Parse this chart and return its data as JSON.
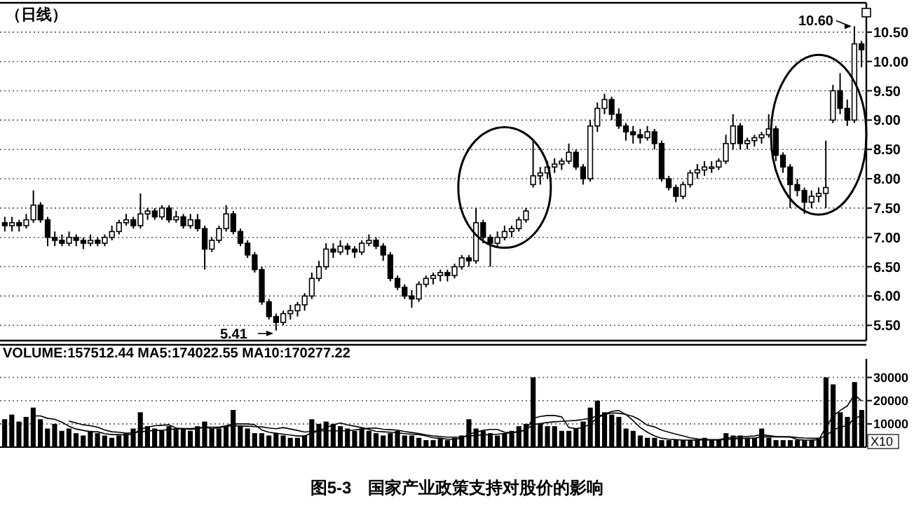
{
  "chart_data": [
    {
      "type": "candlestick",
      "title": "（日线）",
      "categories": [
        null,
        null,
        null,
        null,
        null,
        null,
        null,
        null,
        null,
        null,
        null,
        null,
        null,
        null,
        null,
        null,
        null,
        null,
        null,
        null,
        null,
        null,
        null,
        null,
        null,
        null,
        null,
        null,
        null,
        null,
        null,
        null,
        null,
        null,
        null,
        null,
        null,
        null,
        null,
        null,
        null,
        null,
        null,
        null,
        null,
        null,
        null,
        null,
        null,
        null,
        null,
        null,
        null,
        null,
        null,
        null,
        null,
        null,
        null,
        null,
        null,
        null,
        null,
        null,
        null,
        null,
        null,
        null,
        null,
        null,
        null,
        null,
        null,
        null,
        null,
        null,
        null,
        null,
        null,
        null,
        null,
        null,
        null,
        null,
        null,
        null,
        null,
        null,
        null,
        null,
        null,
        null,
        null,
        null,
        null,
        null,
        null,
        null,
        null,
        null,
        null,
        null,
        null,
        null,
        null,
        null,
        null,
        null,
        null,
        null,
        null,
        null,
        null,
        null,
        null,
        null,
        null,
        null,
        null,
        null,
        null
      ],
      "ohlc": [
        [
          7.25,
          7.35,
          7.1,
          7.2
        ],
        [
          7.2,
          7.35,
          7.1,
          7.25
        ],
        [
          7.25,
          7.3,
          7.1,
          7.2
        ],
        [
          7.2,
          7.4,
          7.15,
          7.3
        ],
        [
          7.3,
          7.8,
          7.25,
          7.55
        ],
        [
          7.55,
          7.6,
          7.25,
          7.3
        ],
        [
          7.3,
          7.35,
          6.85,
          7.0
        ],
        [
          7.0,
          7.1,
          6.85,
          6.95
        ],
        [
          6.95,
          7.05,
          6.85,
          6.9
        ],
        [
          6.9,
          7.1,
          6.85,
          7.0
        ],
        [
          7.0,
          7.05,
          6.85,
          6.95
        ],
        [
          6.95,
          7.0,
          6.8,
          6.9
        ],
        [
          6.9,
          7.05,
          6.85,
          6.95
        ],
        [
          6.95,
          7.0,
          6.85,
          6.9
        ],
        [
          6.9,
          7.05,
          6.85,
          7.0
        ],
        [
          7.0,
          7.2,
          6.95,
          7.1
        ],
        [
          7.1,
          7.3,
          7.05,
          7.25
        ],
        [
          7.25,
          7.4,
          7.2,
          7.3
        ],
        [
          7.3,
          7.35,
          7.15,
          7.2
        ],
        [
          7.2,
          7.75,
          7.15,
          7.4
        ],
        [
          7.4,
          7.5,
          7.3,
          7.45
        ],
        [
          7.45,
          7.5,
          7.3,
          7.35
        ],
        [
          7.35,
          7.55,
          7.3,
          7.5
        ],
        [
          7.5,
          7.55,
          7.25,
          7.3
        ],
        [
          7.3,
          7.45,
          7.25,
          7.35
        ],
        [
          7.35,
          7.4,
          7.15,
          7.2
        ],
        [
          7.2,
          7.4,
          7.15,
          7.3
        ],
        [
          7.3,
          7.4,
          7.1,
          7.15
        ],
        [
          7.15,
          7.2,
          6.45,
          6.8
        ],
        [
          6.8,
          7.0,
          6.75,
          6.95
        ],
        [
          6.95,
          7.2,
          6.9,
          7.15
        ],
        [
          7.15,
          7.55,
          7.1,
          7.4
        ],
        [
          7.4,
          7.45,
          7.05,
          7.1
        ],
        [
          7.1,
          7.15,
          6.85,
          6.9
        ],
        [
          6.9,
          6.95,
          6.65,
          6.7
        ],
        [
          6.7,
          6.75,
          6.4,
          6.45
        ],
        [
          6.45,
          6.5,
          5.85,
          5.9
        ],
        [
          5.9,
          5.95,
          5.6,
          5.65
        ],
        [
          5.65,
          5.7,
          5.41,
          5.55
        ],
        [
          5.55,
          5.75,
          5.5,
          5.7
        ],
        [
          5.7,
          5.85,
          5.6,
          5.75
        ],
        [
          5.75,
          5.9,
          5.65,
          5.85
        ],
        [
          5.85,
          6.05,
          5.75,
          6.0
        ],
        [
          6.0,
          6.4,
          5.95,
          6.3
        ],
        [
          6.3,
          6.6,
          6.25,
          6.5
        ],
        [
          6.5,
          6.9,
          6.45,
          6.8
        ],
        [
          6.8,
          6.9,
          6.65,
          6.75
        ],
        [
          6.75,
          6.95,
          6.7,
          6.85
        ],
        [
          6.85,
          6.9,
          6.7,
          6.8
        ],
        [
          6.8,
          6.85,
          6.65,
          6.75
        ],
        [
          6.75,
          6.95,
          6.7,
          6.9
        ],
        [
          6.9,
          7.05,
          6.85,
          6.95
        ],
        [
          6.95,
          7.0,
          6.8,
          6.85
        ],
        [
          6.85,
          6.9,
          6.6,
          6.7
        ],
        [
          6.7,
          6.75,
          6.25,
          6.3
        ],
        [
          6.3,
          6.35,
          6.1,
          6.15
        ],
        [
          6.15,
          6.2,
          5.95,
          6.0
        ],
        [
          6.0,
          6.1,
          5.8,
          5.95
        ],
        [
          5.95,
          6.25,
          5.9,
          6.2
        ],
        [
          6.2,
          6.35,
          6.15,
          6.3
        ],
        [
          6.3,
          6.4,
          6.2,
          6.35
        ],
        [
          6.35,
          6.45,
          6.25,
          6.4
        ],
        [
          6.4,
          6.45,
          6.25,
          6.35
        ],
        [
          6.35,
          6.55,
          6.3,
          6.5
        ],
        [
          6.5,
          6.7,
          6.45,
          6.65
        ],
        [
          6.65,
          6.7,
          6.5,
          6.6
        ],
        [
          6.6,
          7.5,
          6.55,
          7.25
        ],
        [
          7.25,
          7.3,
          6.9,
          7.0
        ],
        [
          7.0,
          7.05,
          6.5,
          6.9
        ],
        [
          6.9,
          7.1,
          6.85,
          7.0
        ],
        [
          7.0,
          7.2,
          6.95,
          7.1
        ],
        [
          7.1,
          7.2,
          7.0,
          7.15
        ],
        [
          7.15,
          7.35,
          7.1,
          7.3
        ],
        [
          7.3,
          7.5,
          7.25,
          7.45
        ],
        [
          7.9,
          8.65,
          7.85,
          8.05
        ],
        [
          8.05,
          8.2,
          7.9,
          8.1
        ],
        [
          8.1,
          8.3,
          8.0,
          8.2
        ],
        [
          8.2,
          8.35,
          8.1,
          8.25
        ],
        [
          8.25,
          8.35,
          8.15,
          8.3
        ],
        [
          8.3,
          8.6,
          8.25,
          8.45
        ],
        [
          8.45,
          8.5,
          8.15,
          8.2
        ],
        [
          8.2,
          8.25,
          7.9,
          8.0
        ],
        [
          8.0,
          9.0,
          7.95,
          8.9
        ],
        [
          8.9,
          9.3,
          8.8,
          9.2
        ],
        [
          9.2,
          9.45,
          9.1,
          9.35
        ],
        [
          9.35,
          9.4,
          9.0,
          9.1
        ],
        [
          9.1,
          9.2,
          8.85,
          8.9
        ],
        [
          8.9,
          8.95,
          8.65,
          8.8
        ],
        [
          8.8,
          8.9,
          8.6,
          8.75
        ],
        [
          8.75,
          8.85,
          8.6,
          8.7
        ],
        [
          8.7,
          8.9,
          8.65,
          8.8
        ],
        [
          8.8,
          8.85,
          8.5,
          8.6
        ],
        [
          8.6,
          8.65,
          7.95,
          8.0
        ],
        [
          8.0,
          8.05,
          7.8,
          7.85
        ],
        [
          7.85,
          7.9,
          7.6,
          7.7
        ],
        [
          7.7,
          7.95,
          7.65,
          7.9
        ],
        [
          7.9,
          8.15,
          7.85,
          8.1
        ],
        [
          8.1,
          8.25,
          8.0,
          8.15
        ],
        [
          8.15,
          8.3,
          8.05,
          8.2
        ],
        [
          8.2,
          8.3,
          8.1,
          8.2
        ],
        [
          8.2,
          8.35,
          8.15,
          8.3
        ],
        [
          8.3,
          8.75,
          8.25,
          8.6
        ],
        [
          8.6,
          9.1,
          8.5,
          8.9
        ],
        [
          8.9,
          8.95,
          8.5,
          8.6
        ],
        [
          8.6,
          8.7,
          8.5,
          8.65
        ],
        [
          8.65,
          8.75,
          8.55,
          8.7
        ],
        [
          8.7,
          8.8,
          8.6,
          8.75
        ],
        [
          8.75,
          9.1,
          8.7,
          8.85
        ],
        [
          8.85,
          8.9,
          8.3,
          8.4
        ],
        [
          8.4,
          8.45,
          8.1,
          8.2
        ],
        [
          8.2,
          8.25,
          7.5,
          7.9
        ],
        [
          7.9,
          8.0,
          7.7,
          7.8
        ],
        [
          7.8,
          7.85,
          7.4,
          7.6
        ],
        [
          7.6,
          7.8,
          7.5,
          7.7
        ],
        [
          7.7,
          7.85,
          7.6,
          7.75
        ],
        [
          7.75,
          8.65,
          7.5,
          7.85
        ],
        [
          9.0,
          9.6,
          8.95,
          9.5
        ],
        [
          9.5,
          9.8,
          9.1,
          9.2
        ],
        [
          9.2,
          9.35,
          8.9,
          9.0
        ],
        [
          9.0,
          10.6,
          8.95,
          10.3
        ],
        [
          10.3,
          10.35,
          9.9,
          10.2
        ]
      ],
      "color": "#000000",
      "ylim": [
        5.24,
        11.0
      ],
      "yticks": [
        {
          "value": 5.5,
          "label": "5.50"
        },
        {
          "value": 6,
          "label": "6.00"
        },
        {
          "value": 6.5,
          "label": "6.50"
        },
        {
          "value": 7,
          "label": "7.00"
        },
        {
          "value": 7.5,
          "label": "7.50"
        },
        {
          "value": 8,
          "label": "8.00"
        },
        {
          "value": 8.5,
          "label": "8.50"
        },
        {
          "value": 9,
          "label": "9.00"
        },
        {
          "value": 9.5,
          "label": "9.50"
        },
        {
          "value": 10,
          "label": "10.00"
        },
        {
          "value": 10.5,
          "label": "10.50"
        }
      ],
      "grid": "y",
      "annotations": [
        "10.60",
        "5.41"
      ]
    },
    {
      "type": "bar",
      "categories": [
        null,
        null,
        null,
        null,
        null,
        null,
        null,
        null,
        null,
        null,
        null,
        null,
        null,
        null,
        null,
        null,
        null,
        null,
        null,
        null,
        null,
        null,
        null,
        null,
        null,
        null,
        null,
        null,
        null,
        null,
        null,
        null,
        null,
        null,
        null,
        null,
        null,
        null,
        null,
        null,
        null,
        null,
        null,
        null,
        null,
        null,
        null,
        null,
        null,
        null,
        null,
        null,
        null,
        null,
        null,
        null,
        null,
        null,
        null,
        null,
        null,
        null,
        null,
        null,
        null,
        null,
        null,
        null,
        null,
        null,
        null,
        null,
        null,
        null,
        null,
        null,
        null,
        null,
        null,
        null,
        null,
        null,
        null,
        null,
        null,
        null,
        null,
        null,
        null,
        null,
        null,
        null,
        null,
        null,
        null,
        null,
        null,
        null,
        null,
        null,
        null,
        null,
        null,
        null,
        null,
        null,
        null,
        null,
        null,
        null,
        null,
        null,
        null,
        null,
        null,
        null,
        null,
        null,
        null,
        null,
        null
      ],
      "series": [
        {
          "type": "bar",
          "color": "#000000",
          "values": [
            12000,
            14000,
            11000,
            13000,
            17000,
            12000,
            8000,
            10000,
            7000,
            8000,
            6000,
            5000,
            7000,
            6000,
            5000,
            4000,
            5000,
            6000,
            8000,
            15000,
            9000,
            8000,
            7000,
            9000,
            8000,
            8000,
            7000,
            9000,
            11000,
            8000,
            8000,
            9000,
            16000,
            9000,
            8000,
            6000,
            6000,
            5000,
            6000,
            5000,
            4000,
            4000,
            5000,
            12000,
            10000,
            11000,
            10000,
            9000,
            8000,
            7000,
            8000,
            7000,
            6000,
            5000,
            6000,
            7000,
            5000,
            5000,
            4000,
            3000,
            3000,
            4000,
            3000,
            4000,
            5000,
            12000,
            8000,
            7000,
            6000,
            5000,
            6000,
            7000,
            9000,
            10000,
            30000,
            10000,
            9000,
            9000,
            7000,
            7000,
            8000,
            11000,
            17000,
            20000,
            15000,
            14000,
            13000,
            8000,
            7000,
            5000,
            4000,
            4000,
            3000,
            3000,
            3000,
            3000,
            3000,
            3000,
            4000,
            3000,
            3000,
            6000,
            5000,
            5000,
            4000,
            4000,
            8000,
            4000,
            3000,
            3000,
            3000,
            3000,
            3000,
            3000,
            4000,
            30000,
            27000,
            15000,
            13000,
            28000,
            16000
          ]
        },
        {
          "type": "line",
          "color": "#000000",
          "values": [
            null,
            null,
            null,
            null,
            13400,
            13400,
            12400,
            12000,
            10800,
            9000,
            7800,
            7200,
            6600,
            6600,
            5800,
            5400,
            5400,
            5200,
            5600,
            7600,
            8600,
            9200,
            9400,
            9600,
            8200,
            8000,
            8000,
            8200,
            8600,
            8600,
            8600,
            9200,
            10000,
            10000,
            10000,
            9600,
            7400,
            6400,
            6000,
            5600,
            5200,
            4800,
            4800,
            6000,
            7000,
            8400,
            9600,
            10400,
            9600,
            9000,
            8400,
            7600,
            6800,
            6600,
            6400,
            6200,
            5800,
            5600,
            5400,
            4800,
            4000,
            3800,
            3400,
            3400,
            3800,
            5600,
            6400,
            7200,
            7600,
            7600,
            6400,
            6200,
            6600,
            7400,
            12400,
            13200,
            13600,
            13600,
            13000,
            8400,
            8000,
            8400,
            10000,
            12600,
            14200,
            15400,
            15800,
            14000,
            11400,
            8400,
            6400,
            4800,
            3800,
            3400,
            3200,
            3000,
            3000,
            3000,
            3200,
            3200,
            3200,
            3800,
            4200,
            4400,
            4600,
            4800,
            5400,
            5000,
            4600,
            4400,
            4400,
            3200,
            3000,
            3000,
            3200,
            8600,
            13400,
            15800,
            17800,
            22600,
            19800
          ]
        },
        {
          "type": "line",
          "color": "#000000",
          "values": [
            null,
            null,
            null,
            null,
            null,
            null,
            null,
            null,
            null,
            11200,
            10400,
            9600,
            9200,
            8600,
            7400,
            6600,
            6400,
            6000,
            6200,
            6600,
            6900,
            7200,
            7200,
            7600,
            7800,
            8000,
            7600,
            7900,
            8600,
            8000,
            8300,
            9000,
            9200,
            9100,
            9000,
            8800,
            8700,
            8200,
            7900,
            8400,
            7800,
            7200,
            6500,
            6800,
            7000,
            7000,
            7000,
            7000,
            7000,
            7400,
            7800,
            8100,
            8200,
            7700,
            7500,
            7300,
            6700,
            6300,
            5900,
            5300,
            4800,
            4600,
            4300,
            4300,
            4300,
            4800,
            5100,
            5300,
            5400,
            5600,
            5900,
            6200,
            6800,
            7400,
            9700,
            10200,
            10600,
            10900,
            11100,
            11300,
            11500,
            11900,
            12400,
            13400,
            14000,
            14700,
            14600,
            14000,
            13200,
            11600,
            9400,
            8700,
            7300,
            6400,
            5600,
            4800,
            4000,
            3500,
            3200,
            3000,
            3000,
            3300,
            3500,
            3700,
            3800,
            3900,
            4400,
            4500,
            4400,
            4400,
            4400,
            4100,
            3900,
            3800,
            3800,
            4800,
            7400,
            8500,
            9400,
            12400,
            13600
          ]
        }
      ],
      "ylim": [
        0,
        38000
      ],
      "yticks": [
        10000,
        20000,
        30000
      ],
      "grid": "y",
      "annotations": [
        "VOLUME:157512.44 MA5:174022.55 MA10:170277.22",
        "X10",
        "图5-3　国家产业政策支持对股价的影响"
      ]
    }
  ]
}
